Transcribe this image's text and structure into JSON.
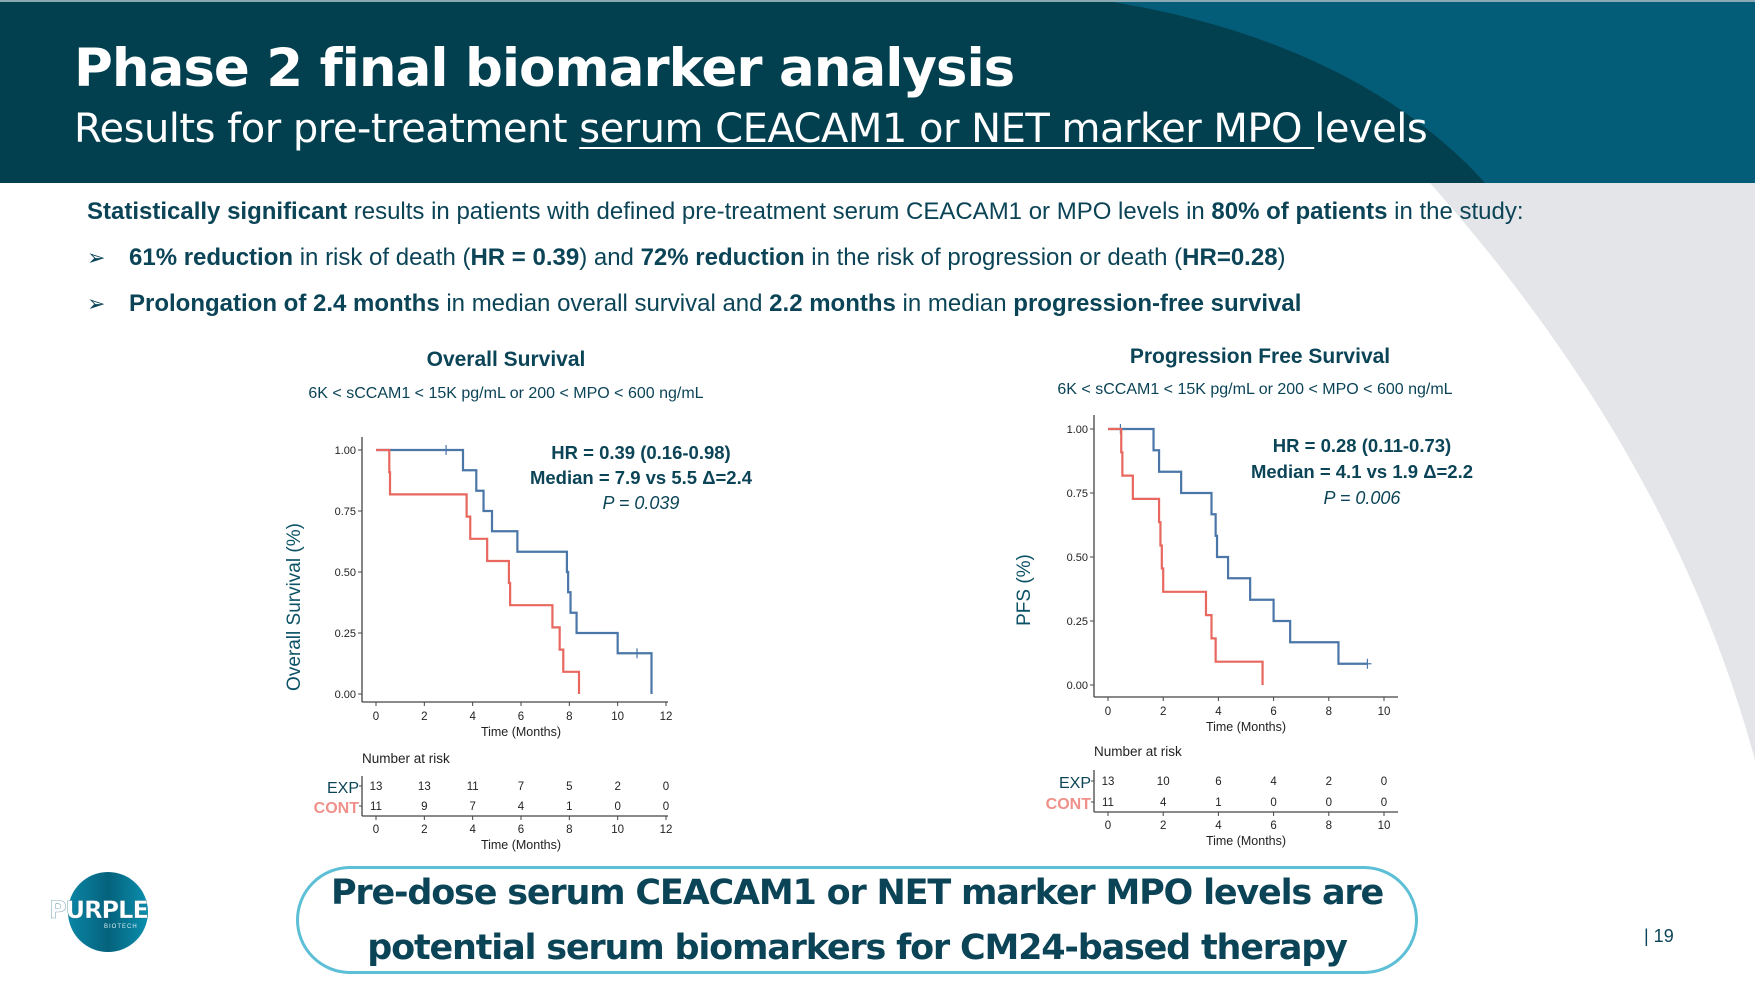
{
  "header": {
    "title": "Phase 2 final biomarker analysis",
    "subtitle_prefix": "Results for pre-treatment ",
    "subtitle_underlined": "serum CEACAM1 or NET marker MPO ",
    "subtitle_suffix": "levels"
  },
  "summary": {
    "intro_bold": "Statistically significant",
    "intro_text1": " results in patients with defined pre-treatment serum CEACAM1 or MPO levels in ",
    "intro_bold2": "80% of patients",
    "intro_text2": " in the study:",
    "bullets": [
      {
        "parts": [
          {
            "b": true,
            "t": "61% reduction"
          },
          {
            "b": false,
            "t": " in risk of death ("
          },
          {
            "b": true,
            "t": "HR = 0.39"
          },
          {
            "b": false,
            "t": ") and "
          },
          {
            "b": true,
            "t": "72% reduction"
          },
          {
            "b": false,
            "t": " in the risk of progression or death ("
          },
          {
            "b": true,
            "t": "HR=0.28"
          },
          {
            "b": false,
            "t": ")"
          }
        ]
      },
      {
        "parts": [
          {
            "b": true,
            "t": "Prolongation of 2.4 months"
          },
          {
            "b": false,
            "t": " in median overall survival and "
          },
          {
            "b": true,
            "t": "2.2 months"
          },
          {
            "b": false,
            "t": " in median "
          },
          {
            "b": true,
            "t": "progression-free survival"
          }
        ]
      }
    ],
    "bullet_icon": "arrowhead-bullet-icon"
  },
  "colors": {
    "exp": "#4a76a8",
    "cont": "#e8675e",
    "cont_label": "#f0908a",
    "text": "#0b4457",
    "header_dark": "#03404f",
    "header_light": "#045d78",
    "callout_border": "#5cbfd6"
  },
  "chart_data": [
    {
      "type": "line",
      "subtype": "kaplan-meier step",
      "title": "Overall Survival",
      "subtitle": "6K < sCCAM1 < 15K pg/mL or 200 < MPO < 600 ng/mL",
      "xlabel": "Time (Months)",
      "ylabel": "Overall Survival (%)",
      "xlim": [
        0,
        12
      ],
      "ylim": [
        0,
        1
      ],
      "xticks": [
        "0",
        "2",
        "4",
        "6",
        "8",
        "10",
        "12"
      ],
      "yticks": [
        "0.00",
        "0.25",
        "0.50",
        "0.75",
        "1.00"
      ],
      "grid": false,
      "annotation": {
        "hr": "HR = 0.39 (0.16-0.98)",
        "median": "Median = 7.9 vs 5.5 Δ=2.4",
        "p": "P = 0.039"
      },
      "series": [
        {
          "name": "EXP",
          "steps": [
            [
              0,
              1.0
            ],
            [
              3.6,
              0.917
            ],
            [
              4.15,
              0.833
            ],
            [
              4.45,
              0.75
            ],
            [
              4.8,
              0.667
            ],
            [
              5.85,
              0.583
            ],
            [
              7.9,
              0.5
            ],
            [
              7.95,
              0.417
            ],
            [
              8.05,
              0.333
            ],
            [
              8.3,
              0.25
            ],
            [
              10.0,
              0.167
            ],
            [
              11.4,
              0.0
            ]
          ],
          "censored": [
            [
              2.9,
              1.0
            ],
            [
              10.8,
              0.167
            ]
          ],
          "end_x": 11.4
        },
        {
          "name": "CONT",
          "steps": [
            [
              0,
              1.0
            ],
            [
              0.55,
              0.909
            ],
            [
              0.58,
              0.818
            ],
            [
              3.75,
              0.727
            ],
            [
              3.9,
              0.636
            ],
            [
              4.6,
              0.545
            ],
            [
              5.5,
              0.455
            ],
            [
              5.55,
              0.364
            ],
            [
              7.3,
              0.273
            ],
            [
              7.6,
              0.182
            ],
            [
              7.75,
              0.091
            ],
            [
              8.4,
              0.0
            ]
          ],
          "censored": [],
          "end_x": 8.4
        }
      ],
      "risk_table": {
        "title": "Number at risk",
        "times": [
          "0",
          "2",
          "4",
          "6",
          "8",
          "10",
          "12"
        ],
        "rows": [
          {
            "label": "EXP",
            "values": [
              "13",
              "13",
              "11",
              "7",
              "5",
              "2",
              "0"
            ]
          },
          {
            "label": "CONT",
            "values": [
              "11",
              "9",
              "7",
              "4",
              "1",
              "0",
              "0"
            ]
          }
        ],
        "xlabel": "Time (Months)"
      }
    },
    {
      "type": "line",
      "subtype": "kaplan-meier step",
      "title": "Progression Free Survival",
      "subtitle": "6K < sCCAM1 < 15K pg/mL or 200 < MPO < 600 ng/mL",
      "xlabel": "Time (Months)",
      "ylabel": "PFS (%)",
      "xlim": [
        0,
        10
      ],
      "ylim": [
        0,
        1
      ],
      "xticks": [
        "0",
        "2",
        "4",
        "6",
        "8",
        "10"
      ],
      "yticks": [
        "0.00",
        "0.25",
        "0.50",
        "0.75",
        "1.00"
      ],
      "grid": false,
      "annotation": {
        "hr": "HR = 0.28 (0.11-0.73)",
        "median": "Median = 4.1 vs 1.9 Δ=2.2",
        "p": "P = 0.006"
      },
      "series": [
        {
          "name": "EXP",
          "steps": [
            [
              0,
              1.0
            ],
            [
              1.65,
              0.917
            ],
            [
              1.85,
              0.833
            ],
            [
              2.65,
              0.75
            ],
            [
              3.75,
              0.667
            ],
            [
              3.9,
              0.583
            ],
            [
              3.95,
              0.5
            ],
            [
              4.35,
              0.417
            ],
            [
              5.15,
              0.333
            ],
            [
              6.0,
              0.25
            ],
            [
              6.6,
              0.167
            ],
            [
              8.35,
              0.083
            ]
          ],
          "censored": [
            [
              0.45,
              1.0
            ],
            [
              9.4,
              0.083
            ]
          ],
          "end_x": 9.4
        },
        {
          "name": "CONT",
          "steps": [
            [
              0,
              1.0
            ],
            [
              0.48,
              0.909
            ],
            [
              0.52,
              0.818
            ],
            [
              0.9,
              0.727
            ],
            [
              1.85,
              0.636
            ],
            [
              1.9,
              0.545
            ],
            [
              1.95,
              0.455
            ],
            [
              2.0,
              0.364
            ],
            [
              3.55,
              0.273
            ],
            [
              3.75,
              0.182
            ],
            [
              3.9,
              0.091
            ],
            [
              5.6,
              0.0
            ]
          ],
          "censored": [],
          "end_x": 5.6
        }
      ],
      "risk_table": {
        "title": "Number at risk",
        "times": [
          "0",
          "2",
          "4",
          "6",
          "8",
          "10"
        ],
        "rows": [
          {
            "label": "EXP",
            "values": [
              "13",
              "10",
              "6",
              "4",
              "2",
              "0"
            ]
          },
          {
            "label": "CONT",
            "values": [
              "11",
              "4",
              "1",
              "0",
              "0",
              "0"
            ]
          }
        ],
        "xlabel": "Time (Months)"
      }
    }
  ],
  "callout": {
    "line1": "Pre-dose serum CEACAM1 or NET marker MPO levels are",
    "line2": "potential serum biomarkers for CM24-based therapy"
  },
  "logo": {
    "name": "PURPLE",
    "tagline": "BIOTECH"
  },
  "footer": {
    "page_number": "| 19"
  }
}
